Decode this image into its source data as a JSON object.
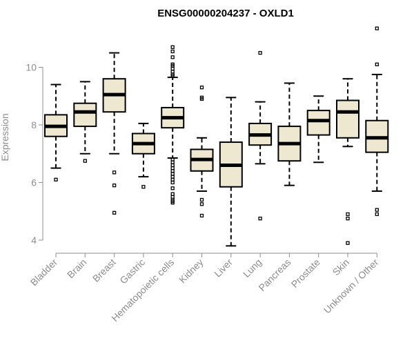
{
  "chart_data": {
    "type": "box",
    "title": "ENSG00000204237 - OXLD1",
    "xlabel": "",
    "ylabel": "Expression",
    "ylim": [
      3.6,
      11.6
    ],
    "yticks": [
      4,
      6,
      8,
      10
    ],
    "box_fill": "#efe8d0",
    "box_stroke": "#000000",
    "median_stroke": "#000000",
    "tick_color": "#8c8c8c",
    "categories": [
      "Bladder",
      "Brain",
      "Breast",
      "Gastric",
      "Hematopoietic cells",
      "Kidney",
      "Liver",
      "Lung",
      "Pancreas",
      "Prostate",
      "Skin",
      "Unknown / Other"
    ],
    "series": [
      {
        "category": "Bladder",
        "q1": 7.6,
        "median": 7.95,
        "q3": 8.35,
        "whisker_low": 6.5,
        "whisker_high": 9.4,
        "outliers": [
          6.1
        ]
      },
      {
        "category": "Brain",
        "q1": 7.95,
        "median": 8.45,
        "q3": 8.75,
        "whisker_low": 7.0,
        "whisker_high": 9.5,
        "outliers": [
          6.75
        ]
      },
      {
        "category": "Breast",
        "q1": 8.45,
        "median": 9.05,
        "q3": 9.6,
        "whisker_low": 7.0,
        "whisker_high": 10.5,
        "outliers": [
          6.35,
          5.9,
          4.95
        ]
      },
      {
        "category": "Gastric",
        "q1": 7.0,
        "median": 7.35,
        "q3": 7.7,
        "whisker_low": 6.2,
        "whisker_high": 8.05,
        "outliers": [
          5.85
        ]
      },
      {
        "category": "Hematopoietic cells",
        "q1": 7.9,
        "median": 8.25,
        "q3": 8.6,
        "whisker_low": 6.85,
        "whisker_high": 9.65,
        "outliers": [
          10.7,
          10.55,
          10.35,
          10.1,
          10.05,
          9.95,
          9.85,
          9.75,
          9.7,
          6.8,
          6.7,
          6.6,
          6.5,
          6.4,
          6.3,
          6.2,
          6.1,
          6.0,
          5.8,
          5.6,
          5.5,
          5.4,
          5.35,
          5.3
        ]
      },
      {
        "category": "Kidney",
        "q1": 6.4,
        "median": 6.8,
        "q3": 7.15,
        "whisker_low": 5.7,
        "whisker_high": 7.55,
        "outliers": [
          9.3,
          8.95,
          8.9,
          5.4,
          5.25,
          4.85
        ]
      },
      {
        "category": "Liver",
        "q1": 5.85,
        "median": 6.6,
        "q3": 7.4,
        "whisker_low": 3.8,
        "whisker_high": 8.95,
        "outliers": []
      },
      {
        "category": "Lung",
        "q1": 7.3,
        "median": 7.65,
        "q3": 8.05,
        "whisker_low": 6.65,
        "whisker_high": 8.8,
        "outliers": [
          10.5,
          4.75
        ]
      },
      {
        "category": "Pancreas",
        "q1": 6.75,
        "median": 7.35,
        "q3": 7.95,
        "whisker_low": 5.9,
        "whisker_high": 9.45,
        "outliers": []
      },
      {
        "category": "Prostate",
        "q1": 7.65,
        "median": 8.15,
        "q3": 8.5,
        "whisker_low": 6.7,
        "whisker_high": 9.0,
        "outliers": []
      },
      {
        "category": "Skin",
        "q1": 7.55,
        "median": 8.45,
        "q3": 8.85,
        "whisker_low": 7.25,
        "whisker_high": 9.6,
        "outliers": [
          4.9,
          4.75,
          3.9
        ]
      },
      {
        "category": "Unknown / Other",
        "q1": 7.05,
        "median": 7.55,
        "q3": 8.15,
        "whisker_low": 5.7,
        "whisker_high": 9.75,
        "outliers": [
          11.35,
          10.1,
          5.05,
          4.9
        ]
      }
    ]
  }
}
